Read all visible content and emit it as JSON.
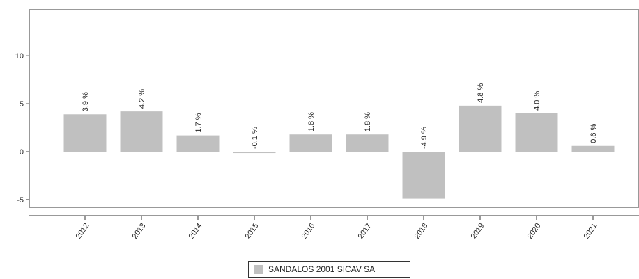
{
  "chart_data": {
    "type": "bar",
    "categories": [
      "2012",
      "2013",
      "2014",
      "2015",
      "2016",
      "2017",
      "2018",
      "2019",
      "2020",
      "2021"
    ],
    "series": [
      {
        "name": "SANDALOS 2001 SICAV SA",
        "values": [
          3.9,
          4.2,
          1.7,
          -0.1,
          1.8,
          1.8,
          -4.9,
          4.8,
          4.0,
          0.6
        ],
        "labels": [
          "3.9 %",
          "4.2 %",
          "1.7 %",
          "-0.1 %",
          "1.8 %",
          "1.8 %",
          "-4.9 %",
          "4.8 %",
          "4.0 %",
          "0.6 %"
        ]
      }
    ],
    "yticks": [
      "10",
      "5",
      "0",
      "-5"
    ],
    "ylim": [
      -5.8,
      14.8
    ],
    "grid": false,
    "legend_position": "bottom-center"
  },
  "colors": {
    "bar": "#c0c0c0",
    "axis": "#333333"
  }
}
